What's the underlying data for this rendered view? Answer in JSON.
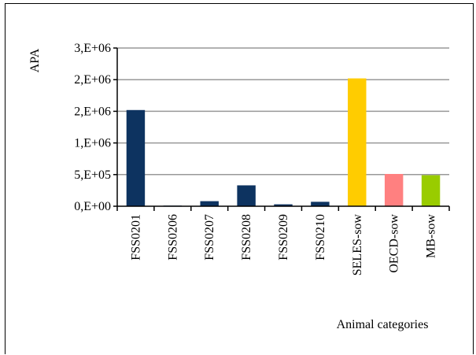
{
  "chart_data": {
    "type": "bar",
    "title": "",
    "xlabel": "Animal categories",
    "ylabel": "APA",
    "categories": [
      "FSS0201",
      "FSS0206",
      "FSS0207",
      "FSS0208",
      "FSS0209",
      "FSS0210",
      "SELES-sow",
      "OECD-sow",
      "MB-sow"
    ],
    "values": [
      1520000,
      10000,
      80000,
      330000,
      30000,
      70000,
      2020000,
      510000,
      490000
    ],
    "bar_colors": [
      "#0d3360",
      "#0d3360",
      "#0d3360",
      "#0d3360",
      "#0d3360",
      "#0d3360",
      "#ffcc00",
      "#ff8080",
      "#99cc00"
    ],
    "ylim": [
      0,
      2500000
    ],
    "yticks": [
      0,
      500000,
      1000000,
      1500000,
      2000000,
      2500000
    ],
    "ytick_labels": [
      "0,E+00",
      "5,E+05",
      "1,E+06",
      "2,E+06",
      "2,E+06",
      "3,E+06"
    ],
    "grid": true,
    "gridline_color": "#999999",
    "legend": "none"
  }
}
